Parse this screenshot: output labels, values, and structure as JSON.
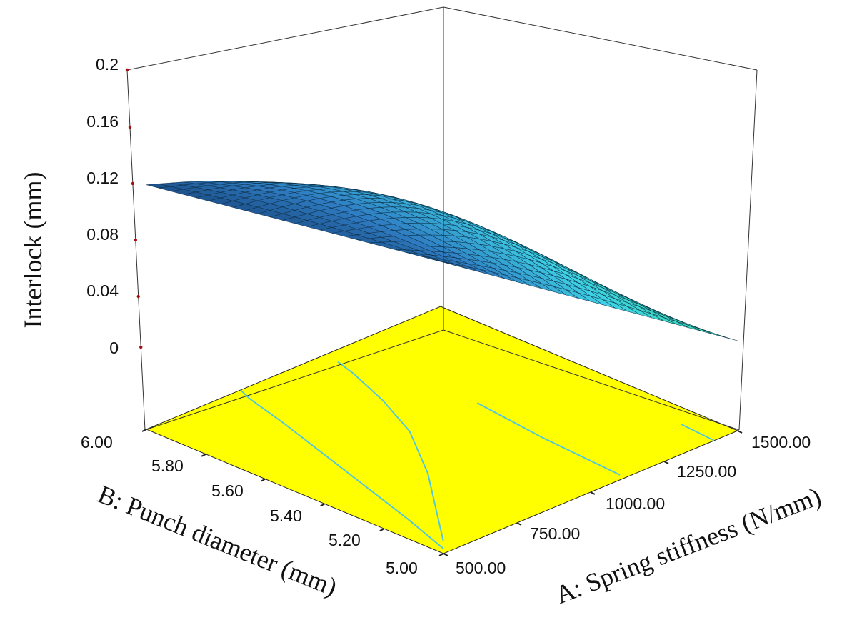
{
  "chart_data": {
    "type": "surface3d",
    "zlabel": "Interlock  (mm)",
    "xlabel": "A: Spring stiffness (N/mm)",
    "ylabel": "B: Punch diameter (mm)",
    "x_ticks": [
      "500.00",
      "750.00",
      "1000.00",
      "1250.00",
      "1500.00"
    ],
    "y_ticks": [
      "5.00",
      "5.20",
      "5.40",
      "5.60",
      "5.80",
      "6.00"
    ],
    "z_ticks": [
      "0",
      "0.04",
      "0.08",
      "0.12",
      "0.16",
      "0.2"
    ],
    "xlim": [
      500,
      1500
    ],
    "ylim": [
      5.0,
      6.0
    ],
    "zlim": [
      0,
      0.2
    ],
    "surface": {
      "corners": [
        {
          "x": 500,
          "y": 6.0,
          "z": 0.114
        },
        {
          "x": 500,
          "y": 5.0,
          "z": 0.147
        },
        {
          "x": 1500,
          "y": 5.0,
          "z": 0.005
        },
        {
          "x": 1500,
          "y": 6.0,
          "z": -0.02
        }
      ],
      "colormap": [
        "#0c2a5a",
        "#2f7cc2",
        "#3fd2e6",
        "#36e0a6"
      ]
    },
    "floor_color": "#ffff00",
    "contour_color": "#55c8d8"
  }
}
